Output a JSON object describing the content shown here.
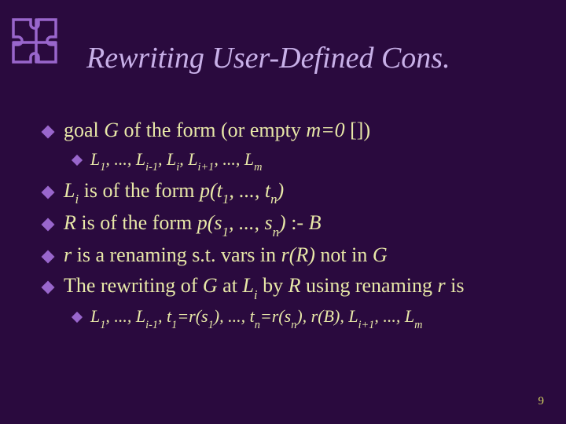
{
  "slide": {
    "title": "Rewriting User-Defined Cons.",
    "page_number": "9",
    "background_color": "#2a0a3e",
    "title_color": "#c8b0e8",
    "text_color": "#e8e8a8",
    "bullet_color": "#9966cc",
    "title_fontsize": 38,
    "body_fontsize": 26,
    "sub_fontsize": 22,
    "corner_icon_color": "#9966cc"
  },
  "bullets": [
    {
      "level": 0,
      "parts": [
        "goal ",
        "G",
        " of the form (or empty ",
        "m=0",
        " [])"
      ],
      "italics": [
        false,
        true,
        false,
        true,
        false
      ]
    },
    {
      "level": 1,
      "html": "L<sub>1</sub>, ..., L<sub>i-1</sub>, L<sub>i</sub>, L<sub>i+1</sub>, ..., L<sub>m</sub>"
    },
    {
      "level": 0,
      "html": "<span class='ital'>L<sub>i</sub></span> is of the form <span class='ital'>p(t<sub>1</sub>, ..., t<sub>n</sub>)</span>"
    },
    {
      "level": 0,
      "html": "<span class='ital'>R</span> is of the form <span class='ital'>p(s<sub>1</sub>, ..., s<sub>n</sub>)</span> :- <span class='ital'>B</span>"
    },
    {
      "level": 0,
      "html": "<span class='ital'>r</span> is a renaming s.t. vars in <span class='ital'>r(R)</span> not in <span class='ital'>G</span>"
    },
    {
      "level": 0,
      "html": "The rewriting of <span class='ital'>G</span> at <span class='ital'>L<sub>i</sub></span> by <span class='ital'>R</span> using renaming <span class='ital'>r</span> is"
    },
    {
      "level": 1,
      "html": "L<sub>1</sub>, ..., L<sub>i-1</sub>, t<sub>1</sub>=r(s<sub>1</sub>), ..., t<sub>n</sub>=r(s<sub>n</sub>), r(B), L<sub>i+1</sub>, ..., L<sub>m</sub>"
    }
  ]
}
